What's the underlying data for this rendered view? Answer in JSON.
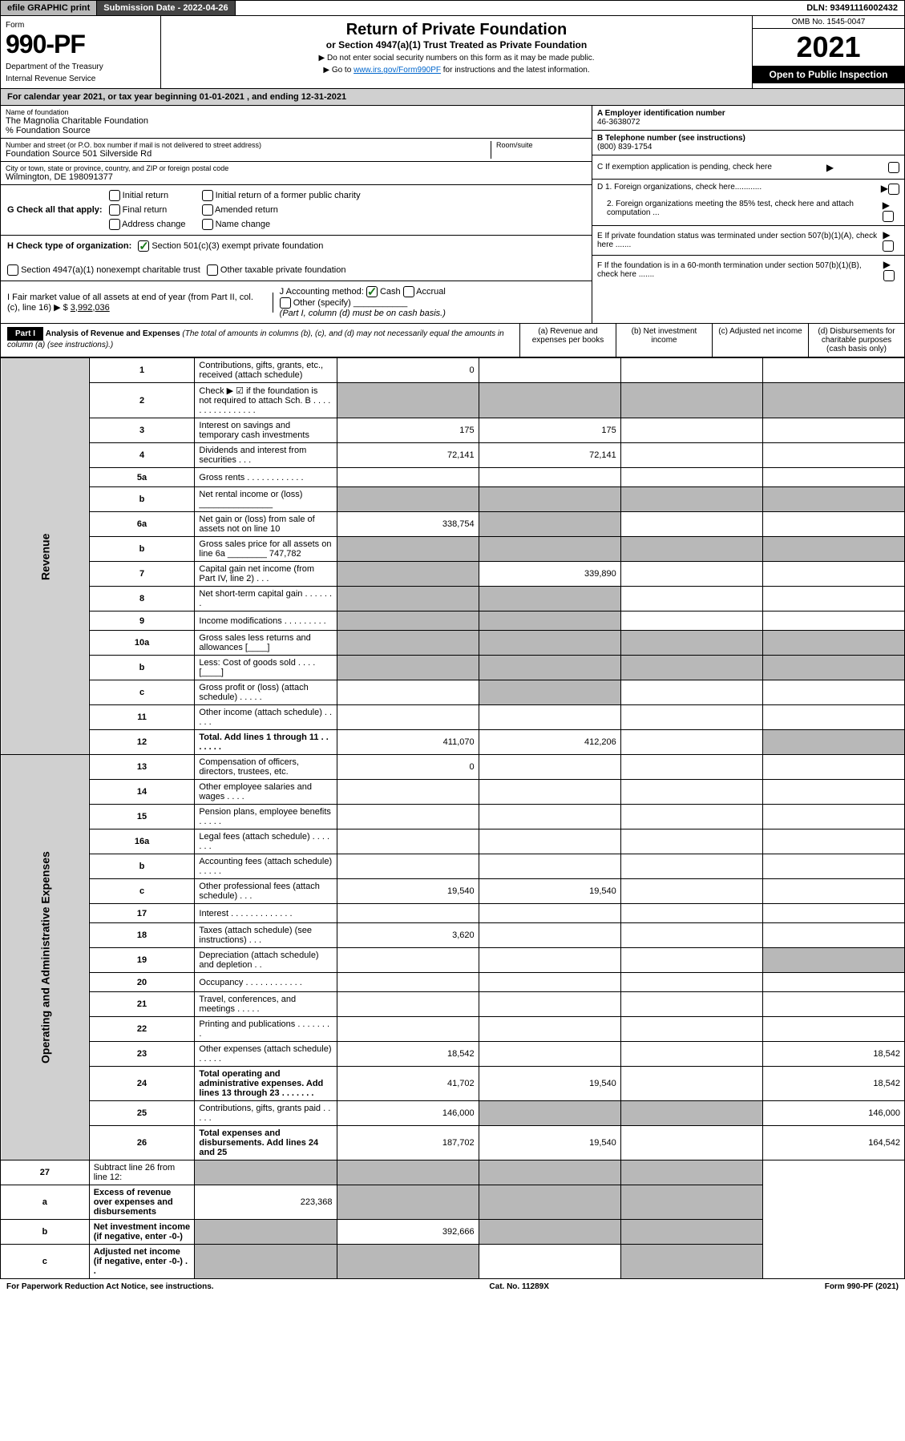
{
  "topbar": {
    "efile": "efile GRAPHIC print",
    "submission": "Submission Date - 2022-04-26",
    "dln": "DLN: 93491116002432"
  },
  "header": {
    "form_label": "Form",
    "form_number": "990-PF",
    "dept1": "Department of the Treasury",
    "dept2": "Internal Revenue Service",
    "title": "Return of Private Foundation",
    "subtitle": "or Section 4947(a)(1) Trust Treated as Private Foundation",
    "instr1": "▶ Do not enter social security numbers on this form as it may be made public.",
    "instr2_pre": "▶ Go to ",
    "instr2_link": "www.irs.gov/Form990PF",
    "instr2_post": " for instructions and the latest information.",
    "omb": "OMB No. 1545-0047",
    "year": "2021",
    "open": "Open to Public Inspection"
  },
  "calendar": "For calendar year 2021, or tax year beginning 01-01-2021            , and ending 12-31-2021",
  "entity": {
    "name_label": "Name of foundation",
    "name": "The Magnolia Charitable Foundation",
    "care_of": "% Foundation Source",
    "addr_label": "Number and street (or P.O. box number if mail is not delivered to street address)",
    "addr": "Foundation Source 501 Silverside Rd",
    "room_label": "Room/suite",
    "city_label": "City or town, state or province, country, and ZIP or foreign postal code",
    "city": "Wilmington, DE  198091377",
    "ein_label": "A Employer identification number",
    "ein": "46-3638072",
    "phone_label": "B Telephone number (see instructions)",
    "phone": "(800) 839-1754",
    "c_label": "C If exemption application is pending, check here",
    "d1": "D 1. Foreign organizations, check here............",
    "d2": "2. Foreign organizations meeting the 85% test, check here and attach computation ...",
    "e": "E If private foundation status was terminated under section 507(b)(1)(A), check here .......",
    "f": "F If the foundation is in a 60-month termination under section 507(b)(1)(B), check here ......."
  },
  "checkG": {
    "label": "G Check all that apply:",
    "initial": "Initial return",
    "initial_former": "Initial return of a former public charity",
    "final": "Final return",
    "amended": "Amended return",
    "address": "Address change",
    "name_change": "Name change"
  },
  "checkH": {
    "label": "H Check type of organization:",
    "c3": "Section 501(c)(3) exempt private foundation",
    "a1": "Section 4947(a)(1) nonexempt charitable trust",
    "other": "Other taxable private foundation"
  },
  "sectionI": {
    "label": "I Fair market value of all assets at end of year (from Part II, col. (c), line 16)",
    "amount_pre": "▶ $",
    "amount": "3,992,036"
  },
  "sectionJ": {
    "label": "J Accounting method:",
    "cash": "Cash",
    "accrual": "Accrual",
    "other": "Other (specify)",
    "note": "(Part I, column (d) must be on cash basis.)"
  },
  "part1": {
    "header": "Part I",
    "title": "Analysis of Revenue and Expenses",
    "note": "(The total of amounts in columns (b), (c), and (d) may not necessarily equal the amounts in column (a) (see instructions).)",
    "col_a": "(a) Revenue and expenses per books",
    "col_b": "(b) Net investment income",
    "col_c": "(c) Adjusted net income",
    "col_d": "(d) Disbursements for charitable purposes (cash basis only)"
  },
  "side_labels": {
    "revenue": "Revenue",
    "expenses": "Operating and Administrative Expenses"
  },
  "rows": [
    {
      "n": "1",
      "desc": "Contributions, gifts, grants, etc., received (attach schedule)",
      "a": "0",
      "b": "",
      "c": "",
      "d": ""
    },
    {
      "n": "2",
      "desc": "Check ▶ ☑ if the foundation is not required to attach Sch. B   . . . . . . . . . . . . . . . .",
      "a": "",
      "b": "",
      "c": "",
      "d": "",
      "grey_all": true,
      "b_checked": true
    },
    {
      "n": "3",
      "desc": "Interest on savings and temporary cash investments",
      "a": "175",
      "b": "175",
      "c": "",
      "d": ""
    },
    {
      "n": "4",
      "desc": "Dividends and interest from securities   . . .",
      "a": "72,141",
      "b": "72,141",
      "c": "",
      "d": ""
    },
    {
      "n": "5a",
      "desc": "Gross rents   . . . . . . . . . . . .",
      "a": "",
      "b": "",
      "c": "",
      "d": ""
    },
    {
      "n": "b",
      "desc": "Net rental income or (loss)  _______________",
      "a": "",
      "b": "",
      "c": "",
      "d": "",
      "grey_abcd": true
    },
    {
      "n": "6a",
      "desc": "Net gain or (loss) from sale of assets not on line 10",
      "a": "338,754",
      "b": "",
      "c": "",
      "d": "",
      "grey_bcd": false,
      "grey_b": true
    },
    {
      "n": "b",
      "desc": "Gross sales price for all assets on line 6a ________ 747,782",
      "a": "",
      "b": "",
      "c": "",
      "d": "",
      "grey_abcd": true
    },
    {
      "n": "7",
      "desc": "Capital gain net income (from Part IV, line 2)   . . .",
      "a": "",
      "b": "339,890",
      "c": "",
      "d": "",
      "grey_a": true
    },
    {
      "n": "8",
      "desc": "Net short-term capital gain   . . . . . . .",
      "a": "",
      "b": "",
      "c": "",
      "d": "",
      "grey_ab": true
    },
    {
      "n": "9",
      "desc": "Income modifications  . . . . . . . . .",
      "a": "",
      "b": "",
      "c": "",
      "d": "",
      "grey_ab": true
    },
    {
      "n": "10a",
      "desc": "Gross sales less returns and allowances  [____]",
      "a": "",
      "b": "",
      "c": "",
      "d": "",
      "grey_abcd": true
    },
    {
      "n": "b",
      "desc": "Less: Cost of goods sold   . . . .  [____]",
      "a": "",
      "b": "",
      "c": "",
      "d": "",
      "grey_abcd": true
    },
    {
      "n": "c",
      "desc": "Gross profit or (loss) (attach schedule)   . . . . .",
      "a": "",
      "b": "",
      "c": "",
      "d": "",
      "grey_b": true
    },
    {
      "n": "11",
      "desc": "Other income (attach schedule)   . . . . .",
      "a": "",
      "b": "",
      "c": "",
      "d": ""
    },
    {
      "n": "12",
      "desc": "Total. Add lines 1 through 11   . . . . . . .",
      "a": "411,070",
      "b": "412,206",
      "c": "",
      "d": "",
      "bold": true,
      "grey_d": true
    }
  ],
  "exp_rows": [
    {
      "n": "13",
      "desc": "Compensation of officers, directors, trustees, etc.",
      "a": "0",
      "b": "",
      "c": "",
      "d": ""
    },
    {
      "n": "14",
      "desc": "Other employee salaries and wages   . . . .",
      "a": "",
      "b": "",
      "c": "",
      "d": ""
    },
    {
      "n": "15",
      "desc": "Pension plans, employee benefits  . . . . .",
      "a": "",
      "b": "",
      "c": "",
      "d": ""
    },
    {
      "n": "16a",
      "desc": "Legal fees (attach schedule)  . . . . . . .",
      "a": "",
      "b": "",
      "c": "",
      "d": ""
    },
    {
      "n": "b",
      "desc": "Accounting fees (attach schedule)  . . . . .",
      "a": "",
      "b": "",
      "c": "",
      "d": ""
    },
    {
      "n": "c",
      "desc": "Other professional fees (attach schedule)   . . .",
      "a": "19,540",
      "b": "19,540",
      "c": "",
      "d": ""
    },
    {
      "n": "17",
      "desc": "Interest  . . . . . . . . . . . . .",
      "a": "",
      "b": "",
      "c": "",
      "d": ""
    },
    {
      "n": "18",
      "desc": "Taxes (attach schedule) (see instructions)   . . .",
      "a": "3,620",
      "b": "",
      "c": "",
      "d": ""
    },
    {
      "n": "19",
      "desc": "Depreciation (attach schedule) and depletion   . .",
      "a": "",
      "b": "",
      "c": "",
      "d": "",
      "grey_d": true
    },
    {
      "n": "20",
      "desc": "Occupancy  . . . . . . . . . . . .",
      "a": "",
      "b": "",
      "c": "",
      "d": ""
    },
    {
      "n": "21",
      "desc": "Travel, conferences, and meetings  . . . . .",
      "a": "",
      "b": "",
      "c": "",
      "d": ""
    },
    {
      "n": "22",
      "desc": "Printing and publications  . . . . . . . .",
      "a": "",
      "b": "",
      "c": "",
      "d": ""
    },
    {
      "n": "23",
      "desc": "Other expenses (attach schedule)  . . . . .",
      "a": "18,542",
      "b": "",
      "c": "",
      "d": "18,542"
    },
    {
      "n": "24",
      "desc": "Total operating and administrative expenses. Add lines 13 through 23   . . . . . . .",
      "a": "41,702",
      "b": "19,540",
      "c": "",
      "d": "18,542",
      "bold": true
    },
    {
      "n": "25",
      "desc": "Contributions, gifts, grants paid   . . . . .",
      "a": "146,000",
      "b": "",
      "c": "",
      "d": "146,000",
      "grey_bc": true
    },
    {
      "n": "26",
      "desc": "Total expenses and disbursements. Add lines 24 and 25",
      "a": "187,702",
      "b": "19,540",
      "c": "",
      "d": "164,542",
      "bold": true
    }
  ],
  "bottom_rows": [
    {
      "n": "27",
      "desc": "Subtract line 26 from line 12:",
      "a": "",
      "b": "",
      "c": "",
      "d": "",
      "grey_abcd": true
    },
    {
      "n": "a",
      "desc": "Excess of revenue over expenses and disbursements",
      "a": "223,368",
      "b": "",
      "c": "",
      "d": "",
      "bold": true,
      "grey_bcd": true
    },
    {
      "n": "b",
      "desc": "Net investment income (if negative, enter -0-)",
      "a": "",
      "b": "392,666",
      "c": "",
      "d": "",
      "bold": true,
      "grey_a": true,
      "grey_cd": true
    },
    {
      "n": "c",
      "desc": "Adjusted net income (if negative, enter -0-)  . .",
      "a": "",
      "b": "",
      "c": "",
      "d": "",
      "bold": true,
      "grey_ab": true,
      "grey_d": true
    }
  ],
  "footer": {
    "left": "For Paperwork Reduction Act Notice, see instructions.",
    "center": "Cat. No. 11289X",
    "right": "Form 990-PF (2021)"
  }
}
